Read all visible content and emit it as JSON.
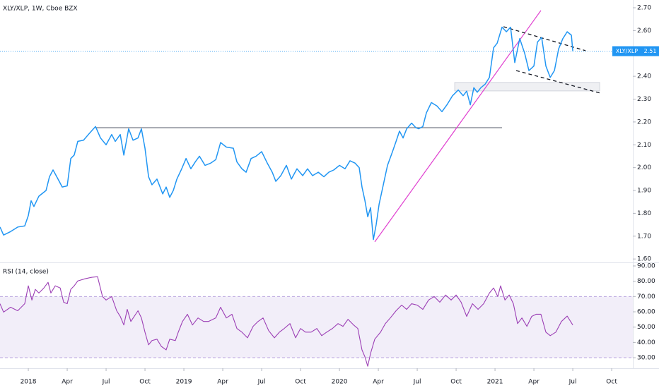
{
  "chart_data": [
    {
      "type": "line",
      "title": "XLY/XLP, 1W, Cboe BZX",
      "x": [
        2017.818,
        2017.841,
        2017.886,
        2017.932,
        2017.977,
        2018,
        2018.018,
        2018.036,
        2018.068,
        2018.114,
        2018.136,
        2018.159,
        2018.191,
        2018.218,
        2018.25,
        2018.273,
        2018.295,
        2018.318,
        2018.355,
        2018.386,
        2018.432,
        2018.464,
        2018.5,
        2018.536,
        2018.559,
        2018.591,
        2018.614,
        2018.645,
        2018.673,
        2018.705,
        2018.727,
        2018.75,
        2018.773,
        2018.795,
        2018.827,
        2018.864,
        2018.886,
        2018.909,
        2018.932,
        2018.955,
        2018.986,
        2019.014,
        2019.045,
        2019.073,
        2019.1,
        2019.136,
        2019.173,
        2019.205,
        2019.236,
        2019.273,
        2019.318,
        2019.341,
        2019.373,
        2019.4,
        2019.432,
        2019.464,
        2019.5,
        2019.536,
        2019.568,
        2019.591,
        2019.623,
        2019.659,
        2019.691,
        2019.727,
        2019.764,
        2019.795,
        2019.827,
        2019.864,
        2019.9,
        2019.932,
        2019.964,
        2020,
        2020.036,
        2020.068,
        2020.1,
        2020.127,
        2020.145,
        2020.164,
        2020.182,
        2020.2,
        2020.218,
        2020.236,
        2020.255,
        2020.282,
        2020.309,
        2020.341,
        2020.364,
        2020.386,
        2020.409,
        2020.432,
        2020.464,
        2020.491,
        2020.509,
        2020.536,
        2020.559,
        2020.591,
        2020.627,
        2020.659,
        2020.691,
        2020.727,
        2020.764,
        2020.795,
        2020.818,
        2020.841,
        2020.864,
        2020.886,
        2020.909,
        2020.936,
        2020.964,
        2020.991,
        2021.014,
        2021.045,
        2021.073,
        2021.1,
        2021.127,
        2021.159,
        2021.191,
        2021.218,
        2021.25,
        2021.273,
        2021.3,
        2021.327,
        2021.355,
        2021.382,
        2021.409,
        2021.436,
        2021.464,
        2021.491,
        2021.5
      ],
      "series": [
        {
          "name": "XLY/XLP",
          "color": "#2196f3",
          "values": [
            1.74,
            1.705,
            1.72,
            1.74,
            1.745,
            1.79,
            1.855,
            1.83,
            1.875,
            1.9,
            1.96,
            1.99,
            1.95,
            1.915,
            1.92,
            2.04,
            2.055,
            2.115,
            2.12,
            2.145,
            2.18,
            2.13,
            2.1,
            2.145,
            2.115,
            2.145,
            2.055,
            2.17,
            2.12,
            2.13,
            2.17,
            2.085,
            1.96,
            1.925,
            1.95,
            1.885,
            1.915,
            1.87,
            1.9,
            1.95,
            1.995,
            2.04,
            1.995,
            2.025,
            2.05,
            2.01,
            2.02,
            2.035,
            2.11,
            2.09,
            2.085,
            2.025,
            1.995,
            1.98,
            2.04,
            2.05,
            2.07,
            2.02,
            1.98,
            1.94,
            1.965,
            2.01,
            1.95,
            1.995,
            1.965,
            1.995,
            1.965,
            1.98,
            1.96,
            1.98,
            1.99,
            2.01,
            1.995,
            2.03,
            2.02,
            2.0,
            1.915,
            1.855,
            1.785,
            1.825,
            1.685,
            1.75,
            1.84,
            1.925,
            2.01,
            2.07,
            2.115,
            2.16,
            2.13,
            2.17,
            2.195,
            2.175,
            2.17,
            2.18,
            2.24,
            2.285,
            2.27,
            2.245,
            2.275,
            2.315,
            2.34,
            2.315,
            2.335,
            2.275,
            2.35,
            2.33,
            2.35,
            2.365,
            2.395,
            2.525,
            2.545,
            2.615,
            2.595,
            2.615,
            2.46,
            2.565,
            2.5,
            2.425,
            2.445,
            2.55,
            2.57,
            2.445,
            2.395,
            2.425,
            2.52,
            2.565,
            2.595,
            2.58,
            2.51
          ]
        }
      ],
      "last_value": 2.51,
      "xlim": [
        2017.818,
        2021.886
      ],
      "ylim": [
        1.585,
        2.734
      ],
      "yticks": [
        {
          "value": 1.6,
          "label": "1.60"
        },
        {
          "value": 1.7,
          "label": "1.70"
        },
        {
          "value": 1.8,
          "label": "1.80"
        },
        {
          "value": 1.9,
          "label": "1.90"
        },
        {
          "value": 2.0,
          "label": "2.00"
        },
        {
          "value": 2.1,
          "label": "2.10"
        },
        {
          "value": 2.2,
          "label": "2.20"
        },
        {
          "value": 2.3,
          "label": "2.30"
        },
        {
          "value": 2.4,
          "label": "2.40"
        },
        {
          "value": 2.6,
          "label": "2.60"
        },
        {
          "value": 2.7,
          "label": "2.70"
        }
      ],
      "drawings": [
        {
          "kind": "rect",
          "color": "#d1d4dc",
          "points": [
            [
              2020.741,
              2.373
            ],
            [
              2021.673,
              2.336
            ]
          ]
        },
        {
          "kind": "segment",
          "color": "#787b86",
          "dashed": false,
          "points": [
            [
              2018.432,
              2.175
            ],
            [
              2021.045,
              2.175
            ]
          ]
        },
        {
          "kind": "segment",
          "color": "#e040d0",
          "dashed": false,
          "points": [
            [
              2020.227,
              1.675
            ],
            [
              2021.295,
              2.688
            ]
          ]
        },
        {
          "kind": "segment",
          "color": "#131722",
          "dashed": true,
          "points": [
            [
              2021.055,
              2.617
            ],
            [
              2021.582,
              2.512
            ]
          ]
        },
        {
          "kind": "segment",
          "color": "#131722",
          "dashed": true,
          "points": [
            [
              2021.136,
              2.425
            ],
            [
              2021.673,
              2.327
            ]
          ]
        }
      ]
    },
    {
      "type": "line",
      "x": [
        2017.818,
        2017.841,
        2017.886,
        2017.932,
        2017.977,
        2018,
        2018.023,
        2018.045,
        2018.068,
        2018.1,
        2018.127,
        2018.145,
        2018.173,
        2018.205,
        2018.227,
        2018.25,
        2018.273,
        2018.295,
        2018.318,
        2018.364,
        2018.409,
        2018.445,
        2018.477,
        2018.5,
        2018.536,
        2018.568,
        2018.591,
        2018.614,
        2018.636,
        2018.659,
        2018.705,
        2018.727,
        2018.75,
        2018.773,
        2018.795,
        2018.827,
        2018.855,
        2018.886,
        2018.909,
        2018.945,
        2018.964,
        2018.991,
        2019.023,
        2019.055,
        2019.091,
        2019.127,
        2019.159,
        2019.205,
        2019.236,
        2019.273,
        2019.309,
        2019.341,
        2019.373,
        2019.409,
        2019.445,
        2019.477,
        2019.509,
        2019.545,
        2019.582,
        2019.614,
        2019.645,
        2019.682,
        2019.718,
        2019.75,
        2019.782,
        2019.818,
        2019.855,
        2019.886,
        2019.918,
        2019.955,
        2019.991,
        2020.023,
        2020.055,
        2020.091,
        2020.118,
        2020.145,
        2020.164,
        2020.182,
        2020.2,
        2020.227,
        2020.264,
        2020.295,
        2020.327,
        2020.364,
        2020.4,
        2020.432,
        2020.464,
        2020.5,
        2020.536,
        2020.573,
        2020.609,
        2020.645,
        2020.682,
        2020.718,
        2020.75,
        2020.782,
        2020.818,
        2020.855,
        2020.891,
        2020.927,
        2020.964,
        2020.991,
        2021.018,
        2021.036,
        2021.064,
        2021.091,
        2021.118,
        2021.145,
        2021.173,
        2021.205,
        2021.236,
        2021.264,
        2021.295,
        2021.327,
        2021.355,
        2021.391,
        2021.427,
        2021.464,
        2021.5
      ],
      "series": [
        {
          "name": "RSI (14, close)",
          "color": "#9c3fb5",
          "values": [
            65.3,
            59.8,
            63,
            60.7,
            65.3,
            77,
            67.7,
            74.7,
            72.3,
            75.6,
            79.3,
            72.3,
            77,
            75.6,
            66.3,
            65.3,
            74.7,
            77,
            80.2,
            81.6,
            82.6,
            83,
            70,
            67.7,
            70,
            60.7,
            57,
            51.4,
            61.6,
            53.7,
            60.7,
            56,
            46.7,
            38.4,
            41.2,
            42.1,
            37.4,
            35.1,
            42.1,
            41.2,
            46.7,
            53.7,
            58.4,
            51.4,
            56,
            53.7,
            53.7,
            56,
            63,
            56,
            58.4,
            49.1,
            46.7,
            43,
            50.5,
            53.7,
            56,
            47.7,
            43,
            46.7,
            49.1,
            52.3,
            43,
            49.1,
            46.7,
            46.7,
            49.1,
            44.4,
            46.7,
            49.1,
            52.3,
            50.5,
            55.1,
            51.4,
            49.1,
            35.1,
            30.5,
            24.4,
            32.8,
            42.1,
            46.7,
            52.3,
            56,
            60.7,
            64.4,
            61.6,
            65.3,
            64.4,
            61.6,
            67.7,
            70,
            66.3,
            71,
            67.7,
            71,
            66.3,
            57,
            65.3,
            61.6,
            65.3,
            72.3,
            75.6,
            70,
            77,
            67.7,
            71,
            65.3,
            52.3,
            56,
            50.5,
            57,
            58.4,
            58.4,
            46.7,
            44.4,
            46.7,
            53.7,
            57.2,
            51.4
          ]
        }
      ],
      "band": [
        30,
        70
      ],
      "band_color": "#7e57c2",
      "xlim": [
        2017.818,
        2021.886
      ],
      "ylim": [
        23.1,
        92.3
      ],
      "yticks": [
        {
          "value": 30,
          "label": "30.00"
        },
        {
          "value": 40,
          "label": "40.00"
        },
        {
          "value": 50,
          "label": "50.00"
        },
        {
          "value": 60,
          "label": "60.00"
        },
        {
          "value": 70,
          "label": "70.00"
        },
        {
          "value": 80,
          "label": "80.00"
        },
        {
          "value": 90,
          "label": "90.00"
        }
      ],
      "xticks": [
        {
          "value": 2018,
          "label": "2018"
        },
        {
          "value": 2018.25,
          "label": "Apr"
        },
        {
          "value": 2018.5,
          "label": "Jul"
        },
        {
          "value": 2018.75,
          "label": "Oct"
        },
        {
          "value": 2019,
          "label": "2019"
        },
        {
          "value": 2019.25,
          "label": "Apr"
        },
        {
          "value": 2019.5,
          "label": "Jul"
        },
        {
          "value": 2019.75,
          "label": "Oct"
        },
        {
          "value": 2020,
          "label": "2020"
        },
        {
          "value": 2020.25,
          "label": "Apr"
        },
        {
          "value": 2020.5,
          "label": "Jul"
        },
        {
          "value": 2020.75,
          "label": "Oct"
        },
        {
          "value": 2021,
          "label": "2021"
        },
        {
          "value": 2021.25,
          "label": "Apr"
        },
        {
          "value": 2021.5,
          "label": "Jul"
        },
        {
          "value": 2021.75,
          "label": "Oct"
        }
      ]
    }
  ]
}
